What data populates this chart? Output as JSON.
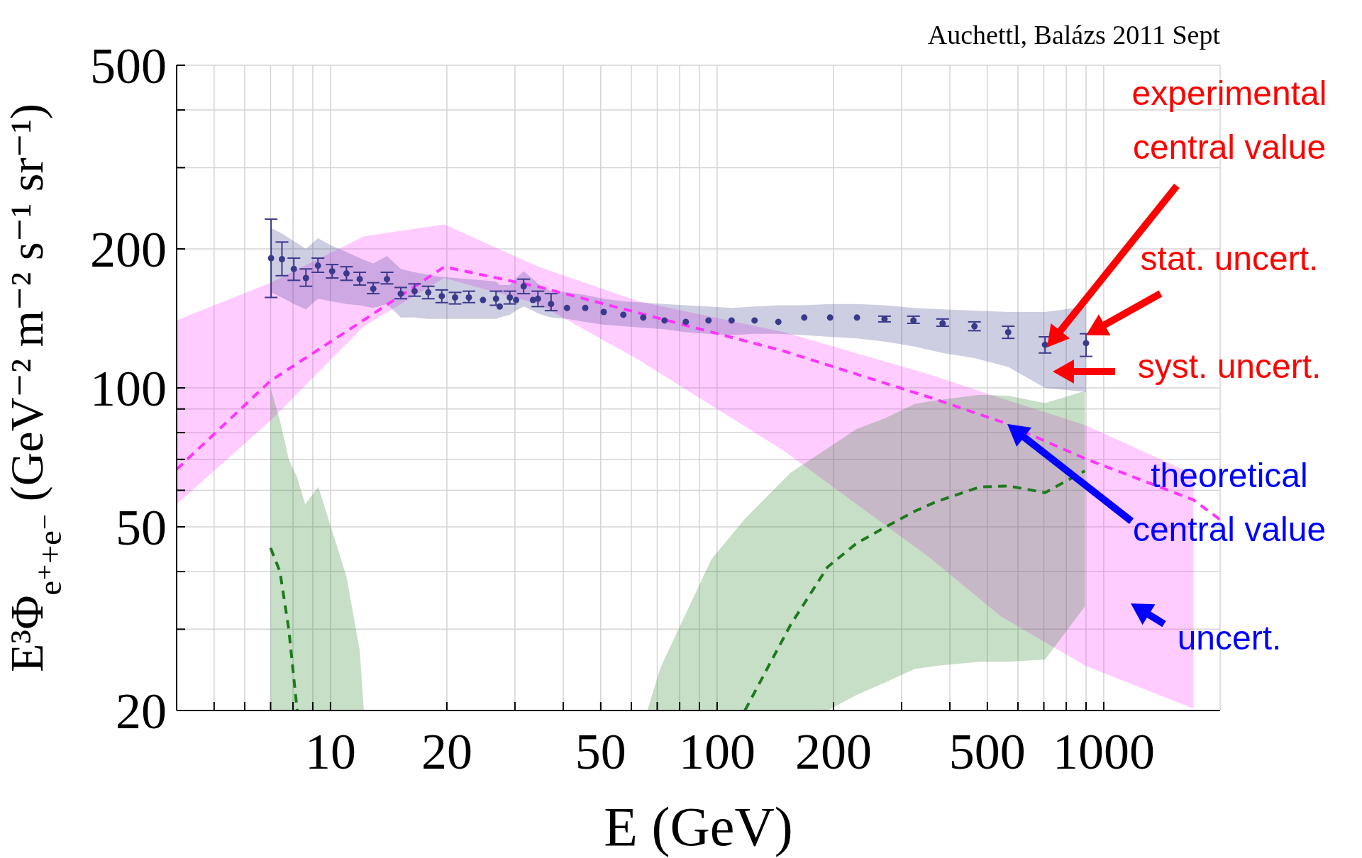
{
  "chart_data": {
    "type": "scatter",
    "xlabel": "E (GeV)",
    "ylabel": "E³Φ$_{e⁺+e⁻}$ (GeV⁻² m⁻² s⁻¹ sr⁻¹)",
    "log": "xy",
    "grid": true,
    "xlim": [
      4,
      2000
    ],
    "ylim": [
      20,
      500
    ],
    "xticks": [
      {
        "value": 5,
        "label": null
      },
      {
        "value": 6,
        "label": null
      },
      {
        "value": 7,
        "label": null
      },
      {
        "value": 8,
        "label": null
      },
      {
        "value": 9,
        "label": null
      },
      10,
      20,
      {
        "value": 30,
        "label": null
      },
      {
        "value": 40,
        "label": null
      },
      50,
      {
        "value": 60,
        "label": null
      },
      {
        "value": 70,
        "label": null
      },
      {
        "value": 80,
        "label": null
      },
      {
        "value": 90,
        "label": null
      },
      100,
      200,
      {
        "value": 300,
        "label": null
      },
      {
        "value": 400,
        "label": null
      },
      500,
      {
        "value": 600,
        "label": null
      },
      {
        "value": 700,
        "label": null
      },
      {
        "value": 800,
        "label": null
      },
      {
        "value": 900,
        "label": null
      },
      1000
    ],
    "yticks": [
      20,
      {
        "value": 30,
        "label": null
      },
      {
        "value": 40,
        "label": null
      },
      50,
      {
        "value": 60,
        "label": null
      },
      {
        "value": 70,
        "label": null
      },
      {
        "value": 80,
        "label": null
      },
      {
        "value": 90,
        "label": null
      },
      100,
      200,
      {
        "value": 300,
        "label": null
      },
      {
        "value": 400,
        "label": null
      },
      500
    ],
    "annotations": [
      "Auchettl, Balázs 2011 Sept",
      "experimental central value",
      {
        "text": "stat. uncert.",
        "x": 900,
        "y": 130
      },
      "syst. uncert.",
      "theoretical central value",
      "uncert."
    ],
    "series": [
      {
        "type": "line",
        "color": "#ff33ff",
        "line_style": "dashed",
        "x": [
          4,
          7,
          12.2,
          19.7,
          34.5,
          62.7,
          149,
          353,
          542,
          897,
          1706,
          2000
        ],
        "values": [
          66.6,
          103.6,
          140.3,
          182.9,
          165.6,
          145.3,
          120.1,
          95.5,
          84.5,
          70.2,
          57.2,
          51.8
        ],
        "lower": [
          56,
          85,
          136,
          173,
          152,
          115,
          73,
          43,
          32,
          25,
          20.2,
          null
        ],
        "upper": [
          140,
          169,
          213,
          226,
          183,
          154,
          132,
          107,
          95,
          83,
          65,
          null
        ]
      },
      {
        "color": "#3a3a8c",
        "marker": "circle",
        "x": [
          7.02,
          7.49,
          8.04,
          8.64,
          9.28,
          10.1,
          11,
          11.9,
          12.9,
          14,
          15.2,
          16.5,
          17.9,
          19.4,
          21,
          22.8,
          24.8,
          26.8,
          27.4,
          29.1,
          30.2,
          31.6,
          33.4,
          34.4,
          37.2,
          40.9,
          45.6,
          50.9,
          57.2,
          64.4,
          73.1,
          83,
          95,
          109,
          125,
          144,
          168,
          196,
          230,
          271,
          322,
          383,
          463,
          566,
          705,
          900
        ],
        "values": [
          191,
          190,
          181,
          173,
          184,
          179,
          177,
          172,
          164,
          172,
          160,
          162,
          161,
          158,
          157,
          157,
          155,
          156,
          150,
          157,
          155,
          166,
          155,
          156,
          152,
          149,
          149,
          146,
          144,
          142,
          140,
          139,
          140,
          140,
          140,
          139,
          142,
          142,
          142,
          141,
          140,
          138,
          136,
          132,
          124,
          125
        ],
        "errors": [
          [
            157,
            232
          ],
          [
            175,
            207
          ],
          [
            171,
            191
          ],
          [
            166,
            181
          ],
          [
            178,
            191
          ],
          [
            173,
            185
          ],
          [
            171,
            183
          ],
          [
            167,
            178
          ],
          [
            160,
            169
          ],
          [
            168,
            178
          ],
          [
            156,
            165
          ],
          [
            158,
            168
          ],
          [
            156,
            166
          ],
          [
            153,
            163
          ],
          [
            152,
            161
          ],
          [
            153,
            162
          ],
          null,
          [
            151,
            162
          ],
          null,
          [
            152,
            162
          ],
          null,
          [
            160,
            172
          ],
          null,
          [
            150,
            162
          ],
          [
            147,
            160
          ],
          null,
          null,
          null,
          null,
          null,
          null,
          null,
          null,
          null,
          null,
          null,
          null,
          null,
          null,
          [
            139,
            143
          ],
          [
            138,
            143
          ],
          [
            136,
            141
          ],
          [
            133,
            139
          ],
          [
            128,
            136
          ],
          [
            119,
            129
          ],
          [
            117,
            131
          ]
        ],
        "lower": [
          161,
          157,
          152,
          148,
          156,
          154,
          152,
          151,
          149,
          152,
          142,
          142,
          141,
          141,
          141,
          141,
          141,
          141,
          142,
          144,
          147,
          150,
          147,
          145,
          142,
          141,
          139,
          137,
          136,
          135,
          134,
          132,
          131,
          130,
          131,
          131,
          130,
          129,
          128,
          126,
          123,
          119,
          116,
          111,
          100,
          98
        ],
        "upper": [
          222,
          216,
          208,
          200,
          211,
          203,
          197,
          191,
          186,
          193,
          181,
          178,
          176,
          174,
          173,
          172,
          171,
          170,
          167,
          167,
          173,
          179,
          172,
          168,
          162,
          161,
          159,
          156,
          154,
          153,
          152,
          151,
          150,
          149,
          150,
          151,
          151,
          152,
          152,
          151,
          149,
          148,
          147,
          146,
          146,
          150
        ]
      },
      {
        "type": "line",
        "color": "#1e7a1e",
        "line_style": "dashed",
        "x": [
          7,
          7.4,
          7.8,
          8.2,
          8.6,
          9.3,
          11,
          11.9,
          12.2
        ],
        "values": [
          45,
          40,
          30,
          20,
          null,
          null,
          null,
          null,
          null
        ],
        "lower": [
          20,
          20,
          20,
          20,
          20,
          20,
          20,
          20,
          20
        ],
        "upper": [
          100,
          85,
          70,
          64,
          56,
          61,
          39,
          27,
          20
        ]
      },
      {
        "type": "line",
        "color": "#1e7a1e",
        "line_style": "dashed",
        "x": [
          66,
          71.4,
          96.6,
          118,
          155,
          193,
          229,
          272,
          324,
          369,
          478,
          568,
          705,
          894
        ],
        "values": [
          null,
          null,
          null,
          20,
          30.7,
          40.9,
          46,
          49.9,
          54,
          56.7,
          61,
          61.3,
          59.3,
          66.1
        ],
        "lower": [
          20,
          20,
          20,
          20,
          20,
          20,
          21.6,
          23,
          24.6,
          25,
          25.5,
          25.5,
          25.8,
          33.6
        ],
        "upper": [
          20,
          24.8,
          42.5,
          52,
          65.5,
          74,
          81.4,
          86,
          92.3,
          94,
          96.6,
          96.1,
          92.7,
          98.4
        ]
      }
    ]
  }
}
